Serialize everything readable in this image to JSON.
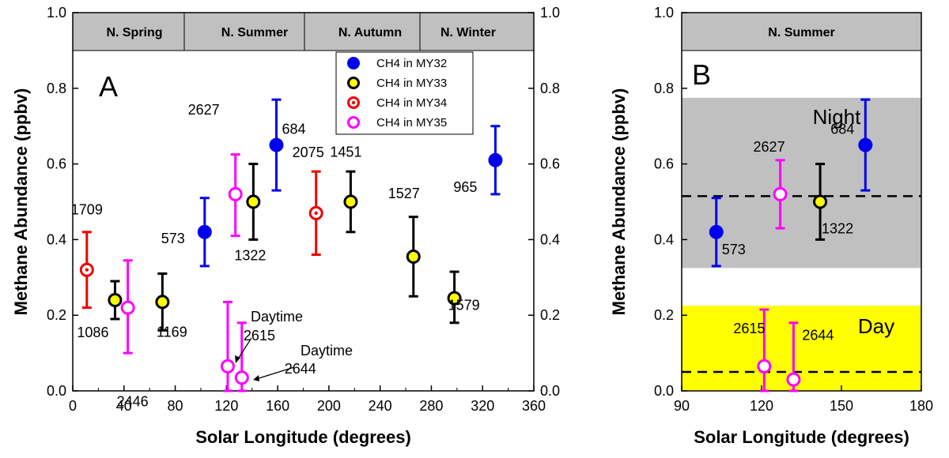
{
  "colors": {
    "MY32": "#0000ee",
    "MY33": "#000000",
    "MY33_fill": "#ffff00",
    "MY34": "#ee0000",
    "MY35": "#ff00ff",
    "season_band": "#c0c0c0",
    "night_band": "#c0c0c0",
    "day_band": "#ffff00"
  },
  "chart_data": [
    {
      "type": "scatter",
      "panel": "A",
      "xlabel": "Solar Longitude (degrees)",
      "ylabel": "Methane Abundance (ppbv)",
      "xlim": [
        0,
        360
      ],
      "ylim": [
        0,
        1.0
      ],
      "x_ticks": [
        "0",
        "40",
        "80",
        "120",
        "160",
        "200",
        "240",
        "280",
        "320",
        "360"
      ],
      "y_ticks": [
        "0.0",
        "0.2",
        "0.4",
        "0.6",
        "0.8",
        "1.0"
      ],
      "seasons": [
        "N. Spring",
        "N. Summer",
        "N. Autumn",
        "N. Winter"
      ],
      "legend": [
        "CH4 in MY32",
        "CH4 in MY33",
        "CH4 in MY34",
        "CH4 in MY35"
      ],
      "series": [
        {
          "name": "CH4 in MY32",
          "style": "filled",
          "points": [
            {
              "x": 103,
              "y": 0.42,
              "lo": 0.33,
              "hi": 0.51,
              "label": "573"
            },
            {
              "x": 159,
              "y": 0.65,
              "lo": 0.53,
              "hi": 0.77,
              "label": "684"
            },
            {
              "x": 330,
              "y": 0.61,
              "lo": 0.52,
              "hi": 0.7,
              "label": "965"
            }
          ]
        },
        {
          "name": "CH4 in MY33",
          "style": "yellow",
          "points": [
            {
              "x": 33,
              "y": 0.24,
              "lo": 0.19,
              "hi": 0.29,
              "label": "1086"
            },
            {
              "x": 70,
              "y": 0.235,
              "lo": 0.16,
              "hi": 0.31,
              "label": "1169"
            },
            {
              "x": 141,
              "y": 0.5,
              "lo": 0.4,
              "hi": 0.6,
              "label": "1322"
            },
            {
              "x": 217,
              "y": 0.5,
              "lo": 0.42,
              "hi": 0.58,
              "label": "1451"
            },
            {
              "x": 266,
              "y": 0.355,
              "lo": 0.25,
              "hi": 0.46,
              "label": "1527"
            },
            {
              "x": 298,
              "y": 0.245,
              "lo": 0.18,
              "hi": 0.315,
              "label": "1579"
            }
          ]
        },
        {
          "name": "CH4 in MY34",
          "style": "dotted",
          "points": [
            {
              "x": 11,
              "y": 0.32,
              "lo": 0.22,
              "hi": 0.42,
              "label": "1709"
            },
            {
              "x": 190,
              "y": 0.47,
              "lo": 0.36,
              "hi": 0.58,
              "label": "2075"
            }
          ]
        },
        {
          "name": "CH4 in MY35",
          "style": "open",
          "points": [
            {
              "x": 43,
              "y": 0.22,
              "lo": 0.1,
              "hi": 0.345,
              "label": "2446"
            },
            {
              "x": 121,
              "y": 0.065,
              "lo": 0.0,
              "hi": 0.235,
              "label": "2615"
            },
            {
              "x": 127,
              "y": 0.52,
              "lo": 0.41,
              "hi": 0.625,
              "label": "2627"
            },
            {
              "x": 132,
              "y": 0.035,
              "lo": 0.0,
              "hi": 0.18,
              "label": "2644"
            }
          ]
        }
      ],
      "annotations": [
        "Daytime",
        "Daytime"
      ]
    },
    {
      "type": "scatter",
      "panel": "B",
      "xlabel": "Solar Longitude (degrees)",
      "ylabel": "Methane Abundance (ppbv)",
      "xlim": [
        90,
        180
      ],
      "ylim": [
        0,
        1.0
      ],
      "x_ticks": [
        "90",
        "120",
        "150",
        "180"
      ],
      "y_ticks": [
        "0.0",
        "0.2",
        "0.4",
        "0.6",
        "0.8",
        "1.0"
      ],
      "season": "N. Summer",
      "night_region": {
        "label": "Night",
        "y_range": [
          0.325,
          0.775
        ],
        "mean": 0.515
      },
      "day_region": {
        "label": "Day",
        "y_range": [
          0.0,
          0.225
        ],
        "mean": 0.05
      },
      "points": [
        {
          "series": "CH4 in MY32",
          "style": "filled",
          "x": 103,
          "y": 0.42,
          "lo": 0.33,
          "hi": 0.51,
          "label": "573"
        },
        {
          "series": "CH4 in MY35",
          "style": "open",
          "x": 127,
          "y": 0.52,
          "lo": 0.43,
          "hi": 0.61,
          "label": "2627"
        },
        {
          "series": "CH4 in MY33",
          "style": "yellow",
          "x": 142,
          "y": 0.5,
          "lo": 0.4,
          "hi": 0.6,
          "label": "1322"
        },
        {
          "series": "CH4 in MY32",
          "style": "filled",
          "x": 159,
          "y": 0.65,
          "lo": 0.53,
          "hi": 0.77,
          "label": "684"
        },
        {
          "series": "CH4 in MY35",
          "style": "open",
          "x": 121,
          "y": 0.065,
          "lo": 0.0,
          "hi": 0.215,
          "label": "2615"
        },
        {
          "series": "CH4 in MY35",
          "style": "open",
          "x": 132,
          "y": 0.03,
          "lo": 0.0,
          "hi": 0.18,
          "label": "2644"
        }
      ]
    }
  ]
}
